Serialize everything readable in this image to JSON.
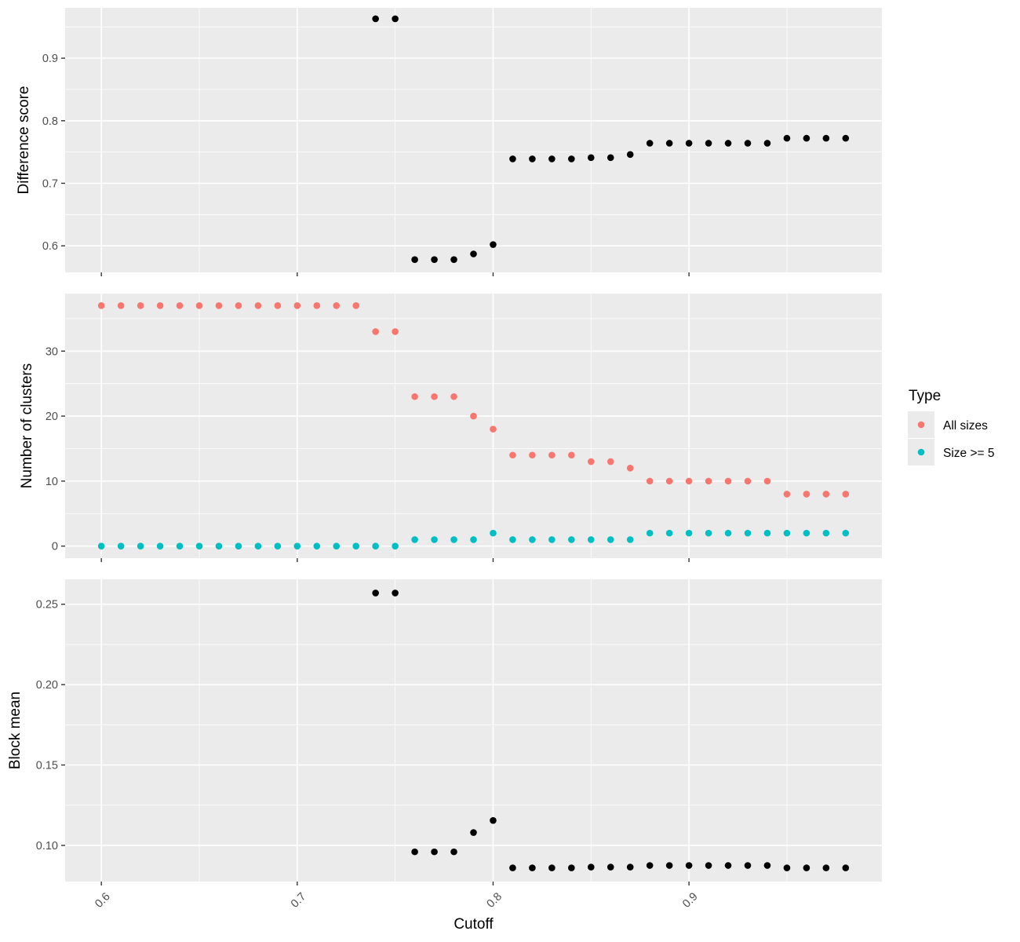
{
  "chart_data": {
    "type": "scatter",
    "xlabel": "Cutoff",
    "x_ticks": [
      0.6,
      0.7,
      0.8,
      0.9
    ],
    "xlim": [
      0.5815,
      0.9985
    ],
    "legend": {
      "title": "Type",
      "position": "right",
      "entries": [
        {
          "label": "All sizes",
          "color": "#f8766d"
        },
        {
          "label": "Size >= 5",
          "color": "#00bfc4"
        }
      ]
    },
    "panels": [
      {
        "ylabel": "Difference score",
        "ylim": [
          0.5575,
          0.9805
        ],
        "y_ticks": [
          0.6,
          0.7,
          0.8,
          0.9
        ],
        "series": [
          {
            "color": "#000000",
            "points": [
              [
                0.74,
                0.963
              ],
              [
                0.75,
                0.963
              ],
              [
                0.76,
                0.578
              ],
              [
                0.77,
                0.578
              ],
              [
                0.78,
                0.578
              ],
              [
                0.79,
                0.587
              ],
              [
                0.8,
                0.602
              ],
              [
                0.81,
                0.739
              ],
              [
                0.82,
                0.739
              ],
              [
                0.83,
                0.739
              ],
              [
                0.84,
                0.739
              ],
              [
                0.85,
                0.741
              ],
              [
                0.86,
                0.741
              ],
              [
                0.87,
                0.746
              ],
              [
                0.88,
                0.764
              ],
              [
                0.89,
                0.764
              ],
              [
                0.9,
                0.764
              ],
              [
                0.91,
                0.764
              ],
              [
                0.92,
                0.764
              ],
              [
                0.93,
                0.764
              ],
              [
                0.94,
                0.764
              ],
              [
                0.95,
                0.772
              ],
              [
                0.96,
                0.772
              ],
              [
                0.97,
                0.772
              ],
              [
                0.98,
                0.772
              ]
            ]
          }
        ]
      },
      {
        "ylabel": "Number of clusters",
        "ylim": [
          -1.85,
          38.85
        ],
        "y_ticks": [
          0,
          10,
          20,
          30
        ],
        "series": [
          {
            "name": "All sizes",
            "color": "#f8766d",
            "points": [
              [
                0.6,
                37
              ],
              [
                0.61,
                37
              ],
              [
                0.62,
                37
              ],
              [
                0.63,
                37
              ],
              [
                0.64,
                37
              ],
              [
                0.65,
                37
              ],
              [
                0.66,
                37
              ],
              [
                0.67,
                37
              ],
              [
                0.68,
                37
              ],
              [
                0.69,
                37
              ],
              [
                0.7,
                37
              ],
              [
                0.71,
                37
              ],
              [
                0.72,
                37
              ],
              [
                0.73,
                37
              ],
              [
                0.74,
                33
              ],
              [
                0.75,
                33
              ],
              [
                0.76,
                23
              ],
              [
                0.77,
                23
              ],
              [
                0.78,
                23
              ],
              [
                0.79,
                20
              ],
              [
                0.8,
                18
              ],
              [
                0.81,
                14
              ],
              [
                0.82,
                14
              ],
              [
                0.83,
                14
              ],
              [
                0.84,
                14
              ],
              [
                0.85,
                13
              ],
              [
                0.86,
                13
              ],
              [
                0.87,
                12
              ],
              [
                0.88,
                10
              ],
              [
                0.89,
                10
              ],
              [
                0.9,
                10
              ],
              [
                0.91,
                10
              ],
              [
                0.92,
                10
              ],
              [
                0.93,
                10
              ],
              [
                0.94,
                10
              ],
              [
                0.95,
                8
              ],
              [
                0.96,
                8
              ],
              [
                0.97,
                8
              ],
              [
                0.98,
                8
              ]
            ]
          },
          {
            "name": "Size >= 5",
            "color": "#00bfc4",
            "points": [
              [
                0.6,
                0
              ],
              [
                0.61,
                0
              ],
              [
                0.62,
                0
              ],
              [
                0.63,
                0
              ],
              [
                0.64,
                0
              ],
              [
                0.65,
                0
              ],
              [
                0.66,
                0
              ],
              [
                0.67,
                0
              ],
              [
                0.68,
                0
              ],
              [
                0.69,
                0
              ],
              [
                0.7,
                0
              ],
              [
                0.71,
                0
              ],
              [
                0.72,
                0
              ],
              [
                0.73,
                0
              ],
              [
                0.74,
                0
              ],
              [
                0.75,
                0
              ],
              [
                0.76,
                1
              ],
              [
                0.77,
                1
              ],
              [
                0.78,
                1
              ],
              [
                0.79,
                1
              ],
              [
                0.8,
                2
              ],
              [
                0.81,
                1
              ],
              [
                0.82,
                1
              ],
              [
                0.83,
                1
              ],
              [
                0.84,
                1
              ],
              [
                0.85,
                1
              ],
              [
                0.86,
                1
              ],
              [
                0.87,
                1
              ],
              [
                0.88,
                2
              ],
              [
                0.89,
                2
              ],
              [
                0.9,
                2
              ],
              [
                0.91,
                2
              ],
              [
                0.92,
                2
              ],
              [
                0.93,
                2
              ],
              [
                0.94,
                2
              ],
              [
                0.95,
                2
              ],
              [
                0.96,
                2
              ],
              [
                0.97,
                2
              ],
              [
                0.98,
                2
              ]
            ]
          }
        ]
      },
      {
        "ylabel": "Block mean",
        "ylim": [
          0.0775,
          0.2655
        ],
        "y_ticks": [
          0.1,
          0.15,
          0.2,
          0.25
        ],
        "y_tick_labels": [
          "0.10",
          "0.15",
          "0.20",
          "0.25"
        ],
        "series": [
          {
            "color": "#000000",
            "points": [
              [
                0.74,
                0.257
              ],
              [
                0.75,
                0.257
              ],
              [
                0.76,
                0.096
              ],
              [
                0.77,
                0.096
              ],
              [
                0.78,
                0.096
              ],
              [
                0.79,
                0.108
              ],
              [
                0.8,
                0.1155
              ],
              [
                0.81,
                0.086
              ],
              [
                0.82,
                0.086
              ],
              [
                0.83,
                0.086
              ],
              [
                0.84,
                0.086
              ],
              [
                0.85,
                0.0865
              ],
              [
                0.86,
                0.0865
              ],
              [
                0.87,
                0.0865
              ],
              [
                0.88,
                0.0875
              ],
              [
                0.89,
                0.0875
              ],
              [
                0.9,
                0.0875
              ],
              [
                0.91,
                0.0875
              ],
              [
                0.92,
                0.0875
              ],
              [
                0.93,
                0.0875
              ],
              [
                0.94,
                0.0875
              ],
              [
                0.95,
                0.086
              ],
              [
                0.96,
                0.086
              ],
              [
                0.97,
                0.086
              ],
              [
                0.98,
                0.086
              ]
            ]
          }
        ]
      }
    ]
  }
}
